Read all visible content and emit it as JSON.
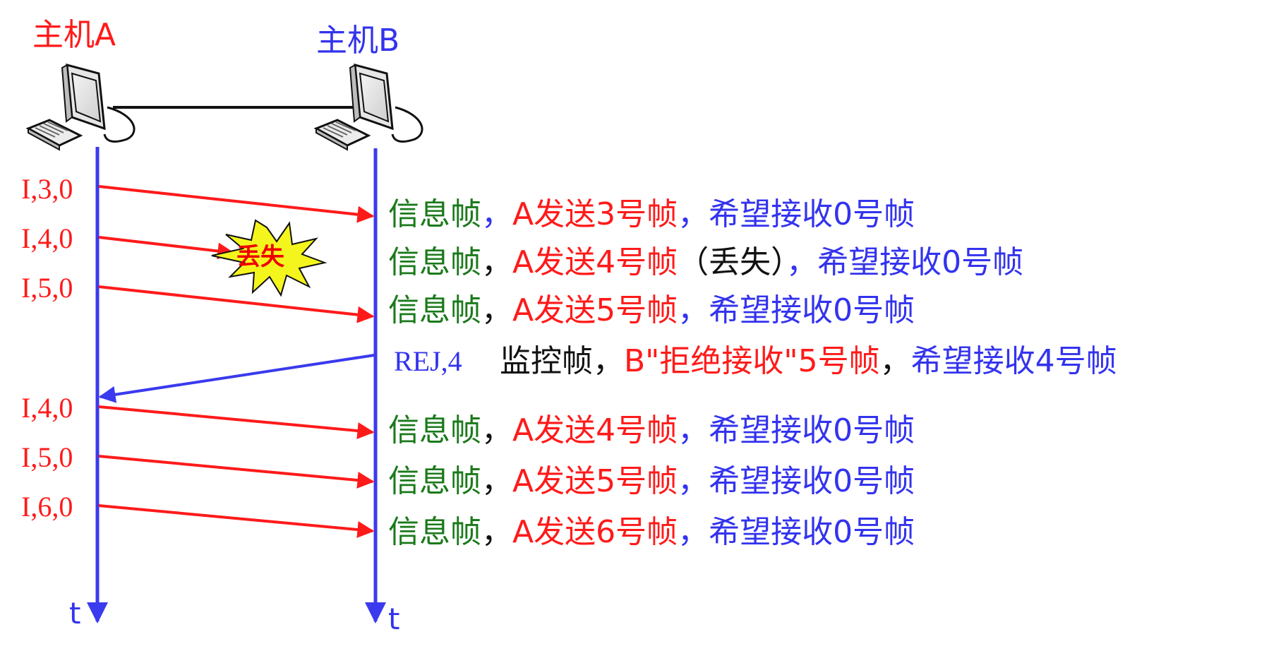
{
  "hosts": {
    "a": {
      "label": "主机A",
      "color": "#ff1a1a"
    },
    "b": {
      "label": "主机B",
      "color": "#3333ee"
    }
  },
  "time_axis": {
    "a_label": "t",
    "b_label": "t"
  },
  "lost_marker": {
    "label": "丢失",
    "text_color": "#ee0000",
    "fill": "#f5f51e"
  },
  "frames_a": [
    "I,3,0",
    "I,4,0",
    "I,5,0",
    "I,4,0",
    "I,5,0",
    "I,6,0"
  ],
  "frame_b": "REJ,4",
  "descriptions": [
    {
      "p1": "信息帧",
      "p2": "，",
      "p3": "A发送3号帧",
      "p4": "，希望接收0号帧"
    },
    {
      "p1": "信息帧",
      "p2": "，",
      "p3": "A发送4号帧",
      "p4": "（丢失）",
      "p5": "，希望接收0号帧"
    },
    {
      "p1": "信息帧",
      "p2": "，",
      "p3": "A发送5号帧",
      "p4": "，希望接收0号帧"
    },
    {
      "p1": "信息帧",
      "p2": "，",
      "p3": "A发送4号帧",
      "p4": "，希望接收0号帧"
    },
    {
      "p1": "信息帧",
      "p2": "，",
      "p3": "A发送5号帧",
      "p4": "，希望接收0号帧"
    },
    {
      "p1": "信息帧",
      "p2": "，",
      "p3": "A发送6号帧",
      "p4": "，希望接收0号帧"
    }
  ],
  "rej_description": {
    "p1": "监控帧，",
    "p2": "B\"拒绝接收\"",
    "p3": "5号帧",
    "p4": "，",
    "p5": "希望接收4号帧"
  },
  "colors": {
    "red": "#ff1a1a",
    "blue": "#3333ee",
    "green": "#1a7a1a",
    "black": "#111111",
    "timeline": "#3a3aee"
  }
}
